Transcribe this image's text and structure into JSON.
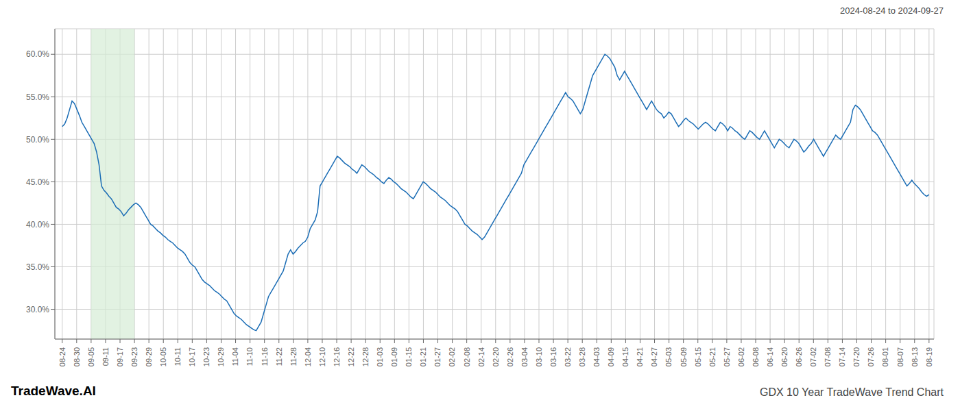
{
  "chart_data": {
    "type": "line",
    "title": "GDX 10 Year TradeWave Trend Chart",
    "subtitle": "2024-08-24 to 2024-09-27",
    "annotations": [
      "TradeWave.AI"
    ],
    "color": "#1b6db5",
    "grid": true,
    "x": [
      0,
      1,
      2,
      3,
      4,
      5,
      6,
      7,
      8,
      9,
      10,
      11,
      12,
      13,
      14,
      15,
      16,
      17,
      18,
      19,
      20,
      21,
      22,
      23,
      24,
      25,
      26,
      27,
      28,
      29,
      30,
      31,
      32,
      33,
      34,
      35,
      36,
      37,
      38,
      39,
      40,
      41,
      42,
      43,
      44,
      45,
      46,
      47,
      48,
      49,
      50,
      51,
      52,
      53,
      54,
      55,
      56,
      57,
      58,
      59,
      60,
      61,
      62,
      63,
      64,
      65,
      66,
      67,
      68,
      69,
      70,
      71,
      72,
      73,
      74,
      75,
      76,
      77,
      78,
      79,
      80,
      81,
      82,
      83,
      84,
      85,
      86,
      87,
      88,
      89,
      90,
      91,
      92,
      93,
      94,
      95,
      96,
      97,
      98,
      99,
      100,
      101,
      102,
      103,
      104,
      105,
      106,
      107,
      108,
      109,
      110,
      111,
      112,
      113,
      114,
      115,
      116,
      117,
      118,
      119,
      120,
      121,
      122,
      123,
      124,
      125,
      126,
      127,
      128,
      129,
      130,
      131,
      132,
      133,
      134,
      135,
      136,
      137,
      138,
      139,
      140,
      141,
      142,
      143,
      144,
      145,
      146,
      147,
      148,
      149,
      150,
      151,
      152,
      153,
      154,
      155,
      156,
      157,
      158,
      159,
      160,
      161,
      162,
      163,
      164,
      165,
      166,
      167,
      168,
      169,
      170,
      171,
      172,
      173,
      174,
      175,
      176,
      177,
      178,
      179,
      180,
      181,
      182,
      183,
      184,
      185,
      186,
      187,
      188,
      189,
      190,
      191,
      192,
      193,
      194,
      195,
      196,
      197,
      198,
      199,
      200,
      201,
      202,
      203,
      204,
      205,
      206,
      207,
      208,
      209,
      210,
      211,
      212,
      213,
      214,
      215,
      216,
      217,
      218,
      219,
      220,
      221,
      222,
      223,
      224,
      225,
      226,
      227,
      228,
      229,
      230,
      231,
      232,
      233,
      234,
      235,
      236,
      237,
      238,
      239,
      240,
      241,
      242,
      243,
      244,
      245,
      246,
      247,
      248,
      249,
      250,
      251,
      252,
      253,
      254,
      255,
      256,
      257,
      258,
      259,
      260,
      261,
      262,
      263,
      264,
      265,
      266,
      267,
      268,
      269,
      270,
      271,
      272,
      273,
      274,
      275,
      276,
      277,
      278,
      279,
      280,
      281,
      282,
      283,
      284,
      285,
      286,
      287,
      288,
      289,
      290,
      291,
      292,
      293,
      294,
      295,
      296,
      297,
      298,
      299,
      300,
      301,
      302,
      303,
      304,
      305,
      306,
      307,
      308,
      309,
      310,
      311,
      312,
      313,
      314,
      315,
      316,
      317,
      318,
      319,
      320,
      321,
      322,
      323,
      324,
      325,
      326,
      327,
      328,
      329,
      330,
      331,
      332,
      333,
      334,
      335,
      336,
      337,
      338,
      339,
      340,
      341,
      342,
      343,
      344,
      345,
      346,
      347,
      348,
      349,
      350,
      351,
      352,
      353
    ],
    "values": [
      51.5,
      51.8,
      52.5,
      53.5,
      54.5,
      54.2,
      53.5,
      52.8,
      52.0,
      51.5,
      51.0,
      50.5,
      50.0,
      49.5,
      48.5,
      47.0,
      44.5,
      44.0,
      43.7,
      43.3,
      43.0,
      42.5,
      42.0,
      41.8,
      41.5,
      41.0,
      41.3,
      41.7,
      42.0,
      42.3,
      42.5,
      42.3,
      42.0,
      41.5,
      41.0,
      40.5,
      40.0,
      39.8,
      39.5,
      39.2,
      39.0,
      38.7,
      38.5,
      38.2,
      38.0,
      37.8,
      37.5,
      37.2,
      37.0,
      36.8,
      36.5,
      36.0,
      35.5,
      35.2,
      35.0,
      34.5,
      34.0,
      33.5,
      33.2,
      33.0,
      32.8,
      32.5,
      32.2,
      32.0,
      31.8,
      31.5,
      31.2,
      31.0,
      30.5,
      30.0,
      29.5,
      29.2,
      29.0,
      28.8,
      28.5,
      28.2,
      28.0,
      27.8,
      27.6,
      27.5,
      28.0,
      28.5,
      29.5,
      30.5,
      31.5,
      32.0,
      32.5,
      33.0,
      33.5,
      34.0,
      34.5,
      35.5,
      36.5,
      37.0,
      36.5,
      36.8,
      37.2,
      37.5,
      37.8,
      38.0,
      38.5,
      39.5,
      40.0,
      40.5,
      41.5,
      44.5,
      45.0,
      45.5,
      46.0,
      46.5,
      47.0,
      47.5,
      48.0,
      47.8,
      47.5,
      47.2,
      47.0,
      46.8,
      46.5,
      46.3,
      46.0,
      46.5,
      47.0,
      46.8,
      46.5,
      46.2,
      46.0,
      45.8,
      45.5,
      45.3,
      45.0,
      44.8,
      45.2,
      45.5,
      45.3,
      45.0,
      44.8,
      44.5,
      44.2,
      44.0,
      43.8,
      43.5,
      43.2,
      43.0,
      43.5,
      44.0,
      44.5,
      45.0,
      44.8,
      44.5,
      44.2,
      44.0,
      43.8,
      43.5,
      43.2,
      43.0,
      42.8,
      42.5,
      42.2,
      42.0,
      41.8,
      41.5,
      41.0,
      40.5,
      40.0,
      39.8,
      39.5,
      39.2,
      39.0,
      38.8,
      38.5,
      38.2,
      38.5,
      39.0,
      39.5,
      40.0,
      40.5,
      41.0,
      41.5,
      42.0,
      42.5,
      43.0,
      43.5,
      44.0,
      44.5,
      45.0,
      45.5,
      46.0,
      47.0,
      47.5,
      48.0,
      48.5,
      49.0,
      49.5,
      50.0,
      50.5,
      51.0,
      51.5,
      52.0,
      52.5,
      53.0,
      53.5,
      54.0,
      54.5,
      55.0,
      55.5,
      55.0,
      54.8,
      54.5,
      54.0,
      53.5,
      53.0,
      53.5,
      54.5,
      55.5,
      56.5,
      57.5,
      58.0,
      58.5,
      59.0,
      59.5,
      60.0,
      59.8,
      59.5,
      59.0,
      58.5,
      57.5,
      57.0,
      57.5,
      58.0,
      57.5,
      57.0,
      56.5,
      56.0,
      55.5,
      55.0,
      54.5,
      54.0,
      53.5,
      54.0,
      54.5,
      54.0,
      53.5,
      53.2,
      53.0,
      52.5,
      52.8,
      53.2,
      53.0,
      52.5,
      52.0,
      51.5,
      51.8,
      52.2,
      52.5,
      52.2,
      52.0,
      51.8,
      51.5,
      51.2,
      51.5,
      51.8,
      52.0,
      51.8,
      51.5,
      51.2,
      51.0,
      51.5,
      52.0,
      51.8,
      51.5,
      51.0,
      51.5,
      51.3,
      51.0,
      50.8,
      50.5,
      50.2,
      50.0,
      50.5,
      51.0,
      50.8,
      50.5,
      50.2,
      50.0,
      50.5,
      51.0,
      50.5,
      50.0,
      49.5,
      49.0,
      49.5,
      50.0,
      49.8,
      49.5,
      49.2,
      49.0,
      49.5,
      50.0,
      49.8,
      49.5,
      49.0,
      48.5,
      48.8,
      49.2,
      49.5,
      50.0,
      49.5,
      49.0,
      48.5,
      48.0,
      48.5,
      49.0,
      49.5,
      50.0,
      50.5,
      50.2,
      50.0,
      50.5,
      51.0,
      51.5,
      52.0,
      53.5,
      54.0,
      53.8,
      53.5,
      53.0,
      52.5,
      52.0,
      51.5,
      51.0,
      50.8,
      50.5,
      50.0,
      49.5,
      49.0,
      48.5,
      48.0,
      47.5,
      47.0,
      46.5,
      46.0,
      45.5,
      45.0,
      44.5,
      44.8,
      45.2,
      44.8,
      44.5,
      44.2,
      43.8,
      43.5,
      43.3,
      43.5
    ],
    "xlim": [
      -3,
      355
    ],
    "xticks": [
      {
        "value": 0,
        "label": "08-24"
      },
      {
        "value": 5.883333333333334,
        "label": "08-30"
      },
      {
        "value": 11.766666666666667,
        "label": "09-05"
      },
      {
        "value": 17.65,
        "label": "09-11"
      },
      {
        "value": 23.533333333333335,
        "label": "09-17"
      },
      {
        "value": 29.416666666666668,
        "label": "09-23"
      },
      {
        "value": 35.3,
        "label": "09-29"
      },
      {
        "value": 41.18333333333333,
        "label": "10-05"
      },
      {
        "value": 47.06666666666667,
        "label": "10-11"
      },
      {
        "value": 52.95,
        "label": "10-17"
      },
      {
        "value": 58.833333333333336,
        "label": "10-23"
      },
      {
        "value": 64.71666666666667,
        "label": "10-29"
      },
      {
        "value": 70.6,
        "label": "11-04"
      },
      {
        "value": 76.48333333333333,
        "label": "11-10"
      },
      {
        "value": 82.36666666666667,
        "label": "11-16"
      },
      {
        "value": 88.25,
        "label": "11-22"
      },
      {
        "value": 94.13333333333334,
        "label": "11-28"
      },
      {
        "value": 100.01666666666667,
        "label": "12-04"
      },
      {
        "value": 105.9,
        "label": "12-10"
      },
      {
        "value": 111.78333333333333,
        "label": "12-16"
      },
      {
        "value": 117.66666666666667,
        "label": "12-22"
      },
      {
        "value": 123.55,
        "label": "12-28"
      },
      {
        "value": 129.43333333333334,
        "label": "01-03"
      },
      {
        "value": 135.31666666666666,
        "label": "01-09"
      },
      {
        "value": 141.2,
        "label": "01-15"
      },
      {
        "value": 147.08333333333334,
        "label": "01-21"
      },
      {
        "value": 152.96666666666667,
        "label": "01-27"
      },
      {
        "value": 158.85,
        "label": "02-02"
      },
      {
        "value": 164.73333333333332,
        "label": "02-08"
      },
      {
        "value": 170.61666666666667,
        "label": "02-14"
      },
      {
        "value": 176.5,
        "label": "02-20"
      },
      {
        "value": 182.38333333333333,
        "label": "02-26"
      },
      {
        "value": 188.26666666666668,
        "label": "03-04"
      },
      {
        "value": 194.15,
        "label": "03-10"
      },
      {
        "value": 200.03333333333333,
        "label": "03-16"
      },
      {
        "value": 205.91666666666666,
        "label": "03-22"
      },
      {
        "value": 211.8,
        "label": "03-28"
      },
      {
        "value": 217.68333333333334,
        "label": "04-03"
      },
      {
        "value": 223.56666666666666,
        "label": "04-09"
      },
      {
        "value": 229.45,
        "label": "04-15"
      },
      {
        "value": 235.33333333333334,
        "label": "04-21"
      },
      {
        "value": 241.21666666666667,
        "label": "04-27"
      },
      {
        "value": 247.1,
        "label": "05-03"
      },
      {
        "value": 252.98333333333332,
        "label": "05-09"
      },
      {
        "value": 258.8666666666667,
        "label": "05-15"
      },
      {
        "value": 264.75,
        "label": "05-21"
      },
      {
        "value": 270.6333333333333,
        "label": "05-27"
      },
      {
        "value": 276.51666666666665,
        "label": "06-02"
      },
      {
        "value": 282.4,
        "label": "06-08"
      },
      {
        "value": 288.2833333333333,
        "label": "06-14"
      },
      {
        "value": 294.1666666666667,
        "label": "06-20"
      },
      {
        "value": 300.05,
        "label": "06-26"
      },
      {
        "value": 305.93333333333334,
        "label": "07-02"
      },
      {
        "value": 311.81666666666666,
        "label": "07-08"
      },
      {
        "value": 317.7,
        "label": "07-14"
      },
      {
        "value": 323.5833333333333,
        "label": "07-20"
      },
      {
        "value": 329.46666666666664,
        "label": "07-26"
      },
      {
        "value": 335.35,
        "label": "08-01"
      },
      {
        "value": 341.23333333333335,
        "label": "08-07"
      },
      {
        "value": 347.1166666666667,
        "label": "08-13"
      },
      {
        "value": 353,
        "label": "08-19"
      }
    ],
    "ylim": [
      26.5,
      63.0
    ],
    "yticks": [
      {
        "value": 30.0,
        "label": "30.0%"
      },
      {
        "value": 35.0,
        "label": "35.0%"
      },
      {
        "value": 40.0,
        "label": "40.0%"
      },
      {
        "value": 45.0,
        "label": "45.0%"
      },
      {
        "value": 50.0,
        "label": "50.0%"
      },
      {
        "value": 55.0,
        "label": "55.0%"
      },
      {
        "value": 60.0,
        "label": "60.0%"
      }
    ],
    "highlight": {
      "x": [
        11.766666666666667,
        29.416666666666668
      ],
      "color": "#d6ecd6"
    }
  }
}
